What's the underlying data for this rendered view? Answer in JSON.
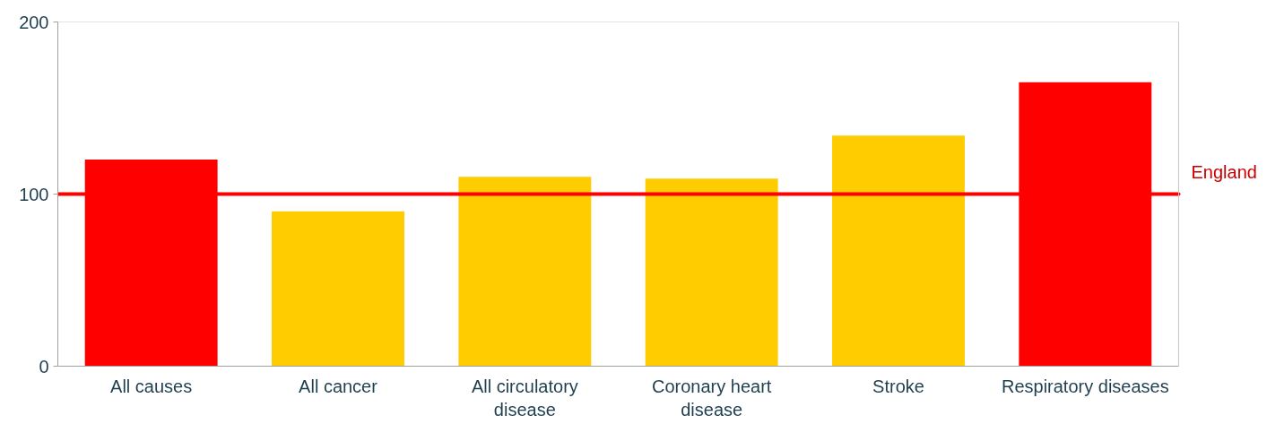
{
  "chart_data": {
    "type": "bar",
    "categories": [
      "All causes",
      "All cancer",
      "All circulatory disease",
      "Coronary heart disease",
      "Stroke",
      "Respiratory diseases"
    ],
    "values": [
      120,
      90,
      110,
      109,
      134,
      165
    ],
    "colors": [
      "#ff0000",
      "#ffcc00",
      "#ffcc00",
      "#ffcc00",
      "#ffcc00",
      "#ff0000"
    ],
    "ylim": [
      0,
      200
    ],
    "yticks": [
      0,
      100,
      200
    ],
    "grid": false,
    "ref_lines": [
      {
        "axis": "y",
        "value": 100,
        "label": "England",
        "color": "#ff0000"
      }
    ]
  }
}
